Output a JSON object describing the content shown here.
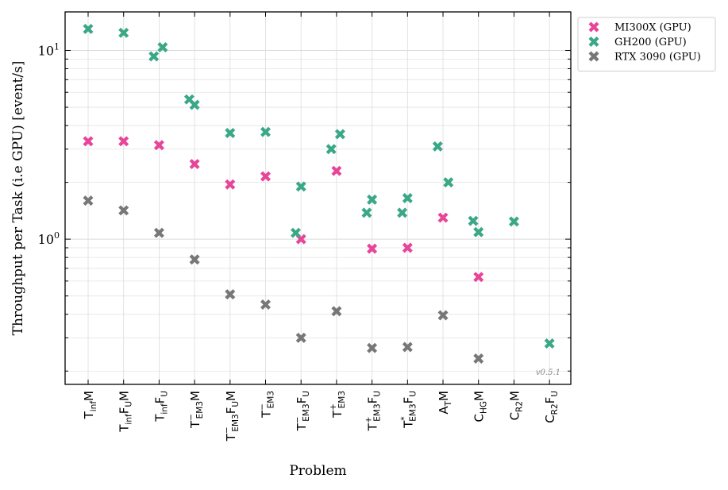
{
  "chart_data": {
    "type": "scatter",
    "xlabel": "Problem",
    "ylabel": "Throughput per Task (i.e GPU) [event/s]",
    "yscale": "log",
    "ylim": [
      0.17,
      16
    ],
    "y_tick_labels": [
      {
        "value": 1,
        "base": "10",
        "exp": "0"
      },
      {
        "value": 10,
        "base": "10",
        "exp": "1"
      }
    ],
    "grid": true,
    "legend_position": "outside-top-right",
    "version_label": "v0.5.1",
    "categories": [
      {
        "base": "T",
        "sub": "inf",
        "rest": "M"
      },
      {
        "base": "T",
        "sub": "inf",
        "mid": "F",
        "sub2": "U",
        "rest": "M"
      },
      {
        "base": "T",
        "sub": "inf",
        "mid": "F",
        "sub2": "U"
      },
      {
        "base": "T",
        "sup": "−",
        "sub": "EM3",
        "rest": "M"
      },
      {
        "base": "T",
        "sup": "−",
        "sub": "EM3",
        "mid": "F",
        "sub2": "U",
        "rest": "M"
      },
      {
        "base": "T",
        "sup": "−",
        "sub": "EM3"
      },
      {
        "base": "T",
        "sup": "−",
        "sub": "EM3",
        "mid": "F",
        "sub2": "U"
      },
      {
        "base": "T",
        "sup": "+",
        "sub": "EM3"
      },
      {
        "base": "T",
        "sup": "+",
        "sub": "EM3",
        "mid": "F",
        "sub2": "U"
      },
      {
        "base": "T",
        "sup": "*",
        "sub": "EM3",
        "mid": "F",
        "sub2": "U"
      },
      {
        "base": "A",
        "sub": "T",
        "rest": "M"
      },
      {
        "base": "C",
        "sub": "HG",
        "rest": "M"
      },
      {
        "base": "C",
        "sub": "R2",
        "rest": "M"
      },
      {
        "base": "C",
        "sub": "R2",
        "mid": "F",
        "sub2": "U"
      }
    ],
    "series": [
      {
        "name": "MI300X (GPU)",
        "color": "#e8449a",
        "points": [
          {
            "cat": 0,
            "y": 3.3
          },
          {
            "cat": 1,
            "y": 3.3
          },
          {
            "cat": 2,
            "y": 3.15
          },
          {
            "cat": 3,
            "y": 2.5
          },
          {
            "cat": 4,
            "y": 1.95
          },
          {
            "cat": 5,
            "y": 2.15
          },
          {
            "cat": 6,
            "y": 1.0
          },
          {
            "cat": 7,
            "y": 2.3
          },
          {
            "cat": 8,
            "y": 0.89
          },
          {
            "cat": 9,
            "y": 0.9
          },
          {
            "cat": 10,
            "y": 1.3
          },
          {
            "cat": 11,
            "y": 0.63
          }
        ]
      },
      {
        "name": "GH200 (GPU)",
        "color": "#3aa887",
        "points": [
          {
            "cat": 0,
            "y": 13.0
          },
          {
            "cat": 1,
            "y": 12.4
          },
          {
            "cat": 2,
            "y": 9.3,
            "dx": -0.15
          },
          {
            "cat": 2,
            "y": 10.4,
            "dx": 0.1
          },
          {
            "cat": 3,
            "y": 5.5,
            "dx": -0.15
          },
          {
            "cat": 3,
            "y": 5.15
          },
          {
            "cat": 4,
            "y": 3.65
          },
          {
            "cat": 5,
            "y": 3.7
          },
          {
            "cat": 6,
            "y": 1.08,
            "dx": -0.15
          },
          {
            "cat": 6,
            "y": 1.9
          },
          {
            "cat": 7,
            "y": 3.0,
            "dx": -0.15
          },
          {
            "cat": 7,
            "y": 3.6,
            "dx": 0.1
          },
          {
            "cat": 8,
            "y": 1.38,
            "dx": -0.15
          },
          {
            "cat": 8,
            "y": 1.62
          },
          {
            "cat": 9,
            "y": 1.38,
            "dx": -0.15
          },
          {
            "cat": 9,
            "y": 1.65
          },
          {
            "cat": 10,
            "y": 3.1,
            "dx": -0.15
          },
          {
            "cat": 10,
            "y": 2.0,
            "dx": 0.15
          },
          {
            "cat": 11,
            "y": 1.25,
            "dx": -0.15
          },
          {
            "cat": 11,
            "y": 1.09
          },
          {
            "cat": 12,
            "y": 1.24
          },
          {
            "cat": 13,
            "y": 0.28
          }
        ]
      },
      {
        "name": "RTX 3090 (GPU)",
        "color": "#777777",
        "points": [
          {
            "cat": 0,
            "y": 1.6
          },
          {
            "cat": 1,
            "y": 1.42
          },
          {
            "cat": 2,
            "y": 1.08
          },
          {
            "cat": 3,
            "y": 0.78
          },
          {
            "cat": 4,
            "y": 0.51
          },
          {
            "cat": 5,
            "y": 0.45
          },
          {
            "cat": 6,
            "y": 0.3
          },
          {
            "cat": 7,
            "y": 0.415
          },
          {
            "cat": 8,
            "y": 0.265
          },
          {
            "cat": 9,
            "y": 0.268
          },
          {
            "cat": 10,
            "y": 0.395
          },
          {
            "cat": 11,
            "y": 0.233
          }
        ]
      }
    ]
  }
}
